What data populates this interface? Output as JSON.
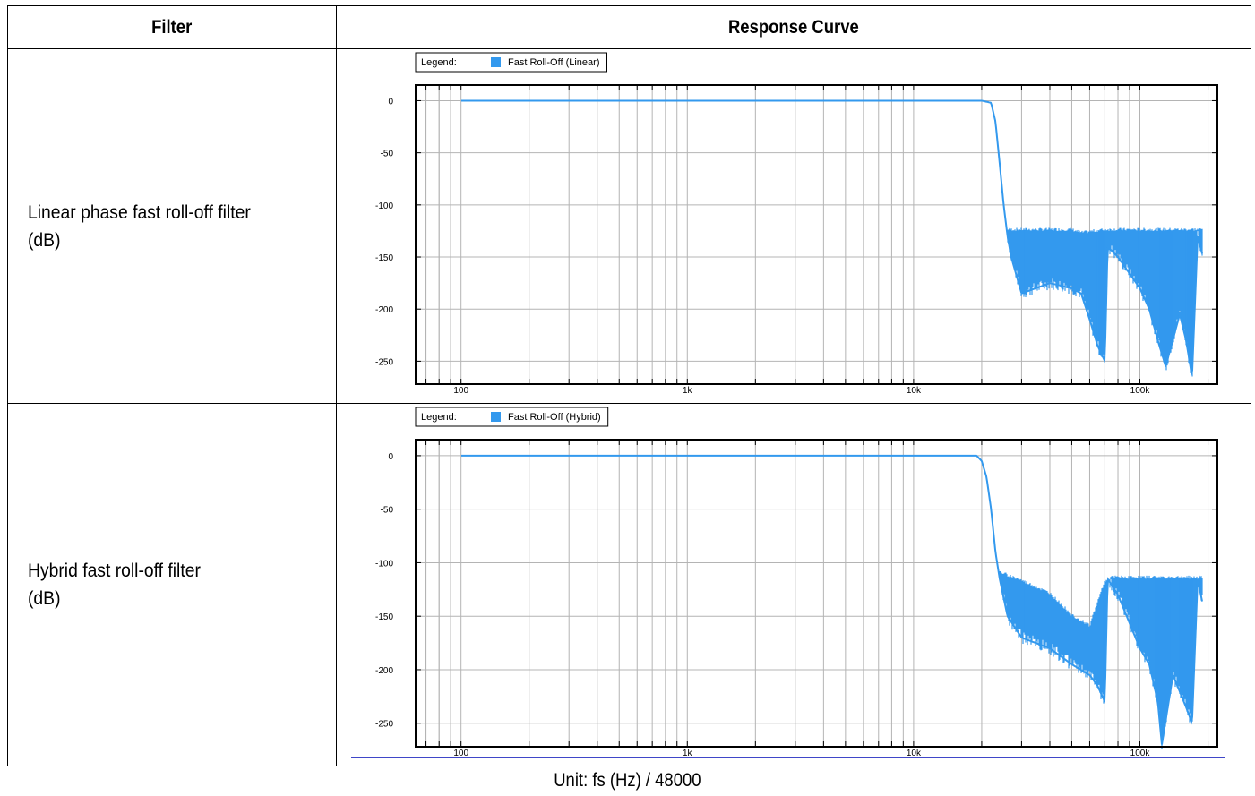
{
  "table": {
    "header_filter": "Filter",
    "header_response": "Response Curve",
    "rows": [
      {
        "filter_line1": "Linear phase fast roll-off filter",
        "filter_line2": "(dB)"
      },
      {
        "filter_line1": "Hybrid fast roll-off filter",
        "filter_line2": "(dB)"
      }
    ]
  },
  "unit_note": "Unit: fs (Hz) / 48000",
  "colors": {
    "series": "#3399ee",
    "grid": "#b4b4b4",
    "frame": "#000000",
    "rule": "#3f46c8"
  },
  "chart_data": [
    {
      "type": "line",
      "legend_label": "Legend:",
      "legend_placement": "top-left",
      "x_scale": "log",
      "xlim": [
        63,
        220000
      ],
      "ylim": [
        -272,
        15
      ],
      "x_ticks": [
        100,
        1000,
        10000,
        100000
      ],
      "x_tick_labels": [
        "100",
        "1k",
        "10k",
        "100k"
      ],
      "y_ticks": [
        0,
        -50,
        -100,
        -150,
        -200,
        -250
      ],
      "y_tick_labels": [
        "0",
        "-50",
        "-100",
        "-150",
        "-200",
        "-250"
      ],
      "grid": true,
      "series": [
        {
          "name": "Fast Roll-Off (Linear)",
          "x": [
            100,
            1000,
            10000,
            20000,
            22000,
            23000,
            24000,
            25000,
            26000,
            27000,
            30000,
            40000,
            50000,
            55000,
            60000,
            65000,
            70000,
            72000,
            80000,
            100000,
            110000,
            120000,
            130000,
            150000,
            160000,
            170000,
            180000,
            190000
          ],
          "y": [
            0,
            0,
            0,
            0,
            -2,
            -20,
            -60,
            -100,
            -130,
            -150,
            -185,
            -175,
            -180,
            -185,
            -210,
            -235,
            -250,
            -140,
            -150,
            -180,
            -200,
            -230,
            -255,
            -205,
            -230,
            -265,
            -130,
            -150
          ],
          "band_x": [
            26000,
            30000,
            40000,
            50000,
            55000,
            70000,
            75000,
            100000,
            110000,
            180000,
            190000
          ],
          "band_top": [
            -125,
            -125,
            -125,
            -125,
            -128,
            -125,
            -125,
            -125,
            -125,
            -125,
            -125
          ]
        }
      ]
    },
    {
      "type": "line",
      "legend_label": "Legend:",
      "legend_placement": "top-left",
      "x_scale": "log",
      "xlim": [
        63,
        220000
      ],
      "ylim": [
        -272,
        15
      ],
      "x_ticks": [
        100,
        1000,
        10000,
        100000
      ],
      "x_tick_labels": [
        "100",
        "1k",
        "10k",
        "100k"
      ],
      "y_ticks": [
        0,
        -50,
        -100,
        -150,
        -200,
        -250
      ],
      "y_tick_labels": [
        "0",
        "-50",
        "-100",
        "-150",
        "-200",
        "-250"
      ],
      "grid": true,
      "series": [
        {
          "name": "Fast Roll-Off (Hybrid)",
          "x": [
            100,
            1000,
            10000,
            19000,
            20000,
            21000,
            22000,
            23000,
            24000,
            26000,
            30000,
            40000,
            50000,
            60000,
            65000,
            70000,
            72000,
            80000,
            100000,
            110000,
            120000,
            125000,
            140000,
            160000,
            170000,
            180000,
            190000
          ],
          "y": [
            0,
            0,
            0,
            0,
            -5,
            -20,
            -50,
            -90,
            -115,
            -150,
            -170,
            -180,
            -195,
            -205,
            -215,
            -230,
            -115,
            -130,
            -180,
            -195,
            -230,
            -270,
            -205,
            -235,
            -250,
            -115,
            -140
          ],
          "band_x": [
            24000,
            30000,
            40000,
            50000,
            60000,
            70000,
            75000,
            100000,
            110000,
            180000,
            190000
          ],
          "band_top": [
            -110,
            -118,
            -130,
            -150,
            -160,
            -118,
            -115,
            -115,
            -115,
            -115,
            -115
          ]
        }
      ]
    }
  ]
}
